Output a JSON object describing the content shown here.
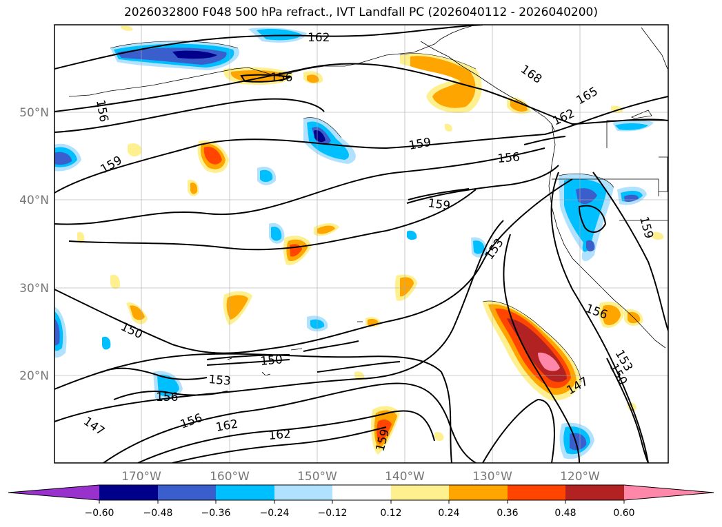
{
  "title": "2026032800 F048 500 hPa refract., IVT Landfall PC (2026040112 - 2026040200)",
  "map": {
    "lon_labels": [
      "170°W",
      "160°W",
      "150°W",
      "140°W",
      "130°W",
      "120°W"
    ],
    "lat_labels": [
      "50°N",
      "40°N",
      "30°N",
      "20°N"
    ],
    "contour_labels": [
      "162",
      "156",
      "168",
      "165",
      "162",
      "156",
      "159",
      "159",
      "156",
      "159",
      "153",
      "159",
      "156",
      "150",
      "150",
      "153",
      "156",
      "147",
      "156",
      "162",
      "162",
      "159",
      "147",
      "153",
      "150"
    ]
  },
  "colorbar": {
    "ticks": [
      "−0.60",
      "−0.48",
      "−0.36",
      "−0.24",
      "−0.12",
      "0.12",
      "0.24",
      "0.36",
      "0.48",
      "0.60"
    ],
    "colors": [
      "#9932cc",
      "#00008b",
      "#3a5fcd",
      "#00bfff",
      "#b0e2ff",
      "#ffffff",
      "#fff08f",
      "#ffa500",
      "#ff4500",
      "#b22222",
      "#ff88aa"
    ]
  }
}
